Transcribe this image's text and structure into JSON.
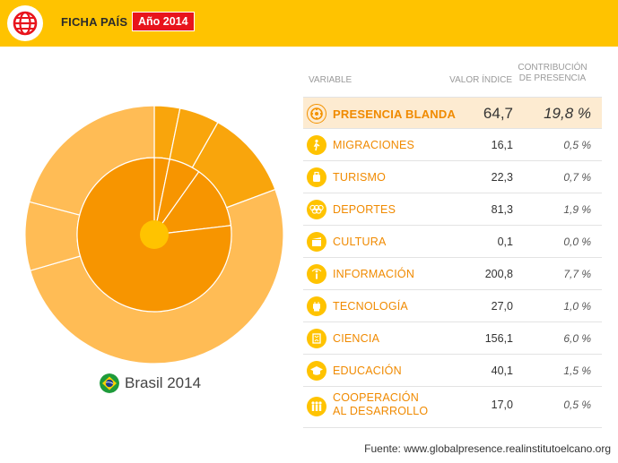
{
  "header": {
    "title": "FICHA PAÍS",
    "year_badge": "Año 2014",
    "bg_color": "#ffc300",
    "badge_color": "#e8141c"
  },
  "country": {
    "name": "Brasil 2014",
    "flag_icon": "brazil-flag-icon"
  },
  "table": {
    "headers": {
      "variable": "VARIABLE",
      "value": "VALOR ÍNDICE",
      "contribution_line1": "CONTRIBUCIÓN",
      "contribution_line2": "DE PRESENCIA"
    },
    "summary": {
      "icon": "soft-presence-icon",
      "label": "PRESENCIA BLANDA",
      "value": "64,7",
      "contribution": "19,8 %"
    },
    "rows": [
      {
        "icon": "migration-icon",
        "label": "MIGRACIONES",
        "value": "16,1",
        "contribution": "0,5 %"
      },
      {
        "icon": "tourism-icon",
        "label": "TURISMO",
        "value": "22,3",
        "contribution": "0,7 %"
      },
      {
        "icon": "sports-icon",
        "label": "DEPORTES",
        "value": "81,3",
        "contribution": "1,9 %"
      },
      {
        "icon": "culture-icon",
        "label": "CULTURA",
        "value": "0,1",
        "contribution": "0,0 %"
      },
      {
        "icon": "information-icon",
        "label": "INFORMACIÓN",
        "value": "200,8",
        "contribution": "7,7 %"
      },
      {
        "icon": "technology-icon",
        "label": "TECNOLOGÍA",
        "value": "27,0",
        "contribution": "1,0 %"
      },
      {
        "icon": "science-icon",
        "label": "CIENCIA",
        "value": "156,1",
        "contribution": "6,0 %"
      },
      {
        "icon": "education-icon",
        "label": "EDUCACIÓN",
        "value": "40,1",
        "contribution": "1,5 %"
      },
      {
        "icon": "cooperation-icon",
        "label_line1": "COOPERACIÓN",
        "label_line2": "AL DESARROLLO",
        "value": "17,0",
        "contribution": "0,5 %"
      }
    ]
  },
  "source": "Fuente: www.globalpresence.realinstitutoelcano.org",
  "donut": {
    "colors": {
      "center": "#ffc300",
      "inner": "#f79500",
      "outer_dark": "#f9a50c",
      "outer_light": "#ffbc55",
      "stroke": "#ffffff"
    },
    "inner_ring": [
      3.2,
      6.6,
      13.3,
      76.9
    ],
    "outer_ring": [
      3.2,
      5.0,
      11.1,
      51.2,
      8.6,
      20.9
    ]
  }
}
